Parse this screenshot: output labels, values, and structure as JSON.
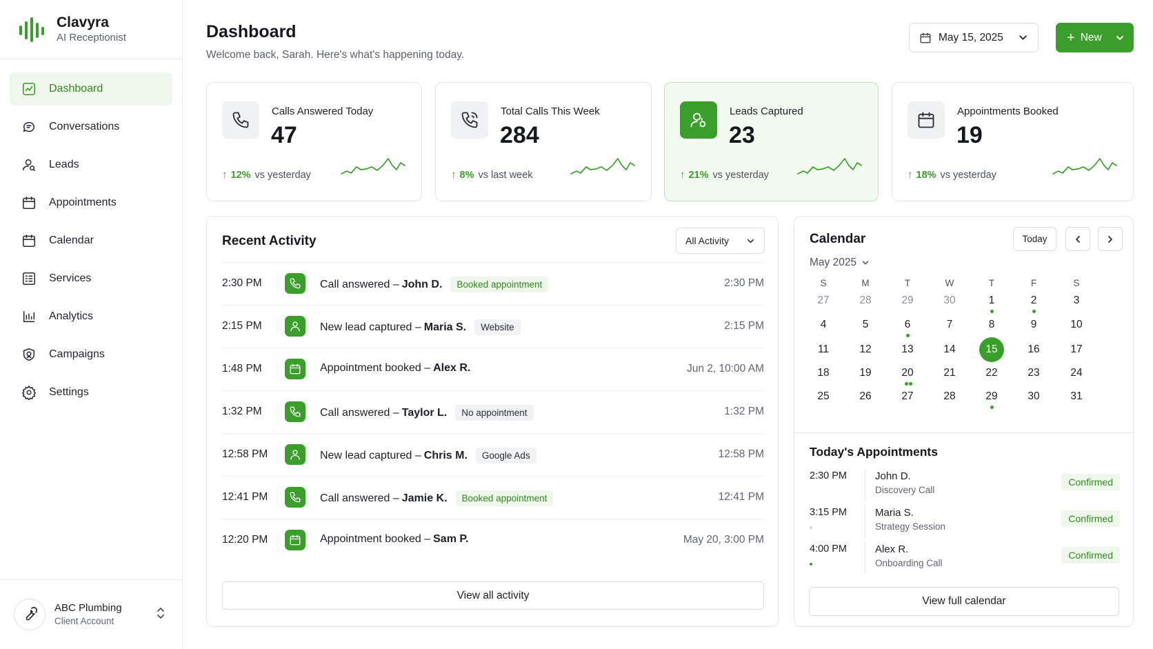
{
  "brand": {
    "name": "Clavyra",
    "tagline": "AI Receptionist"
  },
  "colors": {
    "accent": "#3a9e2a",
    "accent_light": "#eef7ea",
    "text": "#1c1f23",
    "muted": "#60666d",
    "border": "#e3e6e9"
  },
  "sidebar": {
    "items": [
      {
        "label": "Dashboard",
        "icon": "chart-icon",
        "active": true
      },
      {
        "label": "Conversations",
        "icon": "chat-icon"
      },
      {
        "label": "Leads",
        "icon": "user-icon"
      },
      {
        "label": "Appointments",
        "icon": "calendar-icon"
      },
      {
        "label": "Calendar",
        "icon": "calendar-icon"
      },
      {
        "label": "Services",
        "icon": "list-icon"
      },
      {
        "label": "Analytics",
        "icon": "bar-chart-icon"
      },
      {
        "label": "Campaigns",
        "icon": "shield-icon"
      },
      {
        "label": "Settings",
        "icon": "gear-icon"
      }
    ],
    "account": {
      "name": "ABC Plumbing",
      "type": "Client Account",
      "icon": "wrench-icon"
    }
  },
  "header": {
    "title": "Dashboard",
    "subtitle": "Welcome back, Sarah. Here's what's happening today.",
    "date": "May 15, 2025",
    "new_label": "New"
  },
  "stats": [
    {
      "label": "Calls Answered Today",
      "value": "47",
      "change": "12%",
      "compare": "vs yesterday",
      "icon": "phone-icon"
    },
    {
      "label": "Total Calls This Week",
      "value": "284",
      "change": "8%",
      "compare": "vs last week",
      "icon": "phone-ring-icon"
    },
    {
      "label": "Leads Captured",
      "value": "23",
      "change": "21%",
      "compare": "vs yesterday",
      "icon": "user-check-icon",
      "highlight": true
    },
    {
      "label": "Appointments Booked",
      "value": "19",
      "change": "18%",
      "compare": "vs yesterday",
      "icon": "calendar-icon"
    }
  ],
  "activity": {
    "title": "Recent Activity",
    "filter": "All Activity",
    "rows": [
      {
        "time": "2:30 PM",
        "icon": "phone-icon",
        "action": "Call answered –",
        "who": "John D.",
        "badge": "Booked appointment",
        "badge_style": "green",
        "right": "2:30 PM"
      },
      {
        "time": "2:15 PM",
        "icon": "user-icon",
        "action": "New lead captured –",
        "who": "Maria S.",
        "badge": "Website",
        "badge_style": "gray",
        "right": "2:15 PM"
      },
      {
        "time": "1:48 PM",
        "icon": "calendar-icon",
        "action": "Appointment booked –",
        "who": "Alex R.",
        "badge": "",
        "badge_style": "",
        "right": "Jun 2, 10:00 AM"
      },
      {
        "time": "1:32 PM",
        "icon": "phone-icon",
        "action": "Call answered –",
        "who": "Taylor L.",
        "badge": "No appointment",
        "badge_style": "gray",
        "right": "1:32 PM"
      },
      {
        "time": "12:58 PM",
        "icon": "user-icon",
        "action": "New lead captured –",
        "who": "Chris M.",
        "badge": "Google Ads",
        "badge_style": "gray",
        "right": "12:58 PM"
      },
      {
        "time": "12:41 PM",
        "icon": "phone-icon",
        "action": "Call answered –",
        "who": "Jamie K.",
        "badge": "Booked appointment",
        "badge_style": "green",
        "right": "12:41 PM"
      },
      {
        "time": "12:20 PM",
        "icon": "calendar-icon",
        "action": "Appointment booked –",
        "who": "Sam P.",
        "badge": "",
        "badge_style": "",
        "right": "May 20, 3:00 PM"
      }
    ],
    "view_all": "View all activity"
  },
  "calendar": {
    "title": "Calendar",
    "today_label": "Today",
    "month": "May 2025",
    "weekdays": [
      "S",
      "M",
      "T",
      "W",
      "T",
      "F",
      "S"
    ],
    "weeks": [
      [
        "27",
        "28",
        "29",
        "30",
        "1",
        "2",
        "3"
      ],
      [
        "4",
        "5",
        "6",
        "7",
        "8",
        "9",
        "10"
      ],
      [
        "11",
        "12",
        "13",
        "14",
        "15",
        "16",
        "17"
      ],
      [
        "18",
        "19",
        "20",
        "21",
        "22",
        "23",
        "24"
      ],
      [
        "25",
        "26",
        "27",
        "28",
        "29",
        "30",
        "31"
      ]
    ],
    "selected": "15",
    "event_days": {
      "1": 1,
      "2": 1,
      "6": 1,
      "20": 2,
      "29": 1
    },
    "appointments_title": "Today's Appointments",
    "appointments": [
      {
        "time": "2:30 PM",
        "name": "John D.",
        "desc": "Discovery Call",
        "status": "Confirmed"
      },
      {
        "time": "3:15 PM",
        "name": "Maria S.",
        "desc": "Strategy Session",
        "status": "Confirmed"
      },
      {
        "time": "4:00 PM",
        "name": "Alex R.",
        "desc": "Onboarding Call",
        "status": "Confirmed"
      }
    ],
    "view_full": "View full calendar"
  }
}
